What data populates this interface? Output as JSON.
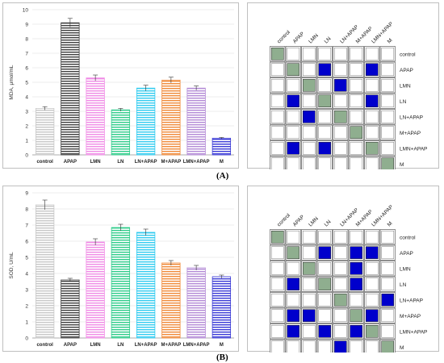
{
  "panel_labels": {
    "a": "(A)",
    "b": "(B)"
  },
  "chart_data": [
    {
      "type": "bar",
      "ylabel": "MDA, μmol/mL",
      "ylim": [
        0,
        10
      ],
      "yticks": [
        0,
        1,
        2,
        3,
        4,
        5,
        6,
        7,
        8,
        9,
        10
      ],
      "categories": [
        "control",
        "APAP",
        "LMN",
        "LN",
        "LN+APAP",
        "M+APAP",
        "LMN+APAP",
        "M"
      ],
      "values": [
        3.2,
        9.1,
        5.3,
        3.1,
        4.6,
        5.15,
        4.6,
        1.15
      ],
      "errors": [
        0.12,
        0.3,
        0.2,
        0.1,
        0.2,
        0.2,
        0.15,
        0.05
      ],
      "colors": [
        "#c8c8c8",
        "#404040",
        "#f08ce6",
        "#2ecc8a",
        "#33ccf0",
        "#f08a3a",
        "#b38ad6",
        "#3b3bd6"
      ],
      "grid": true
    },
    {
      "type": "bar",
      "ylabel": "SOD, U/mL",
      "ylim": [
        0,
        9
      ],
      "yticks": [
        0,
        1,
        2,
        3,
        4,
        5,
        6,
        7,
        8,
        9
      ],
      "categories": [
        "control",
        "APAP",
        "LMN",
        "LN",
        "LN+APAP",
        "M+APAP",
        "LMN+APAP",
        "M"
      ],
      "values": [
        8.25,
        3.6,
        5.95,
        6.85,
        6.55,
        4.65,
        4.35,
        3.8
      ],
      "errors": [
        0.3,
        0.1,
        0.2,
        0.2,
        0.2,
        0.15,
        0.15,
        0.1
      ],
      "colors": [
        "#c8c8c8",
        "#404040",
        "#f08ce6",
        "#2ecc8a",
        "#33ccf0",
        "#f08a3a",
        "#b38ad6",
        "#3b3bd6"
      ],
      "grid": true
    },
    {
      "type": "heatmap",
      "labels": [
        "control",
        "APAP",
        "LMN",
        "LN",
        "LN+APAP",
        "M+APAP",
        "LMN+APAP",
        "M"
      ],
      "legend": {
        "0": "white",
        "1": "blue",
        "2": "gray-green"
      },
      "cell_colors": {
        "0": "#ffffff",
        "1": "#0000cc",
        "2": "#8fae8f"
      },
      "matrix": [
        [
          2,
          0,
          0,
          0,
          0,
          0,
          0,
          0
        ],
        [
          0,
          2,
          0,
          1,
          0,
          0,
          1,
          0
        ],
        [
          0,
          0,
          2,
          0,
          1,
          0,
          0,
          0
        ],
        [
          0,
          1,
          0,
          2,
          0,
          0,
          1,
          0
        ],
        [
          0,
          0,
          1,
          0,
          2,
          0,
          0,
          0
        ],
        [
          0,
          0,
          0,
          0,
          0,
          2,
          0,
          0
        ],
        [
          0,
          1,
          0,
          1,
          0,
          0,
          2,
          0
        ],
        [
          0,
          0,
          0,
          0,
          0,
          0,
          0,
          2
        ]
      ]
    },
    {
      "type": "heatmap",
      "labels": [
        "control",
        "APAP",
        "LMN",
        "LN",
        "LN+APAP",
        "M+APAP",
        "LMN+APAP",
        "M"
      ],
      "legend": {
        "0": "white",
        "1": "blue",
        "2": "gray-green"
      },
      "cell_colors": {
        "0": "#ffffff",
        "1": "#0000cc",
        "2": "#8fae8f"
      },
      "matrix": [
        [
          2,
          0,
          0,
          0,
          0,
          0,
          0,
          0
        ],
        [
          0,
          2,
          0,
          1,
          0,
          1,
          1,
          0
        ],
        [
          0,
          0,
          2,
          0,
          0,
          1,
          0,
          0
        ],
        [
          0,
          1,
          0,
          2,
          0,
          1,
          0,
          0
        ],
        [
          0,
          0,
          0,
          0,
          2,
          0,
          0,
          1
        ],
        [
          0,
          1,
          1,
          0,
          0,
          2,
          1,
          0
        ],
        [
          0,
          1,
          0,
          1,
          0,
          1,
          2,
          0
        ],
        [
          0,
          0,
          0,
          0,
          1,
          0,
          0,
          2
        ]
      ]
    }
  ]
}
